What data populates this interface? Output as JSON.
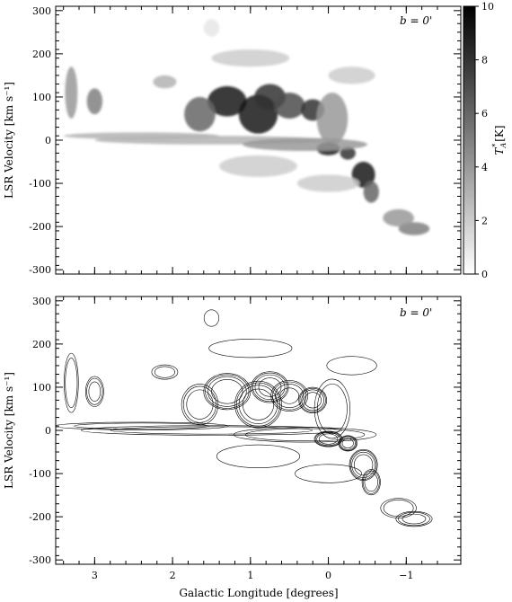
{
  "chart_data": [
    {
      "type": "heatmap",
      "panel": "top",
      "annotation": "b = 0'",
      "xlabel": "",
      "ylabel": "LSR Velocity [km s⁻¹]",
      "xlim": [
        3.5,
        -1.7
      ],
      "ylim": [
        -310,
        310
      ],
      "yticks": [
        300,
        200,
        100,
        0,
        -100,
        -200,
        -300
      ],
      "colorbar": {
        "label": "T*A [K]",
        "range": [
          0,
          10
        ],
        "ticks": [
          0,
          2,
          4,
          6,
          8,
          10
        ],
        "colormap": "white-to-black"
      },
      "features": [
        {
          "l": 1.3,
          "v": 90,
          "dl": 0.25,
          "dv": 35,
          "T": 9
        },
        {
          "l": 0.9,
          "v": 60,
          "dl": 0.25,
          "dv": 45,
          "T": 9
        },
        {
          "l": 0.75,
          "v": 100,
          "dl": 0.2,
          "dv": 30,
          "T": 8
        },
        {
          "l": 0.5,
          "v": 80,
          "dl": 0.2,
          "dv": 30,
          "T": 7
        },
        {
          "l": 0.2,
          "v": 70,
          "dl": 0.15,
          "dv": 25,
          "T": 8
        },
        {
          "l": 1.65,
          "v": 60,
          "dl": 0.2,
          "dv": 40,
          "T": 6
        },
        {
          "l": -0.05,
          "v": 50,
          "dl": 0.2,
          "dv": 60,
          "T": 4
        },
        {
          "l": 0.0,
          "v": -20,
          "dl": 0.15,
          "dv": 15,
          "T": 9
        },
        {
          "l": -0.25,
          "v": -30,
          "dl": 0.1,
          "dv": 15,
          "T": 8
        },
        {
          "l": -0.45,
          "v": -80,
          "dl": 0.15,
          "dv": 30,
          "T": 9
        },
        {
          "l": -0.55,
          "v": -120,
          "dl": 0.1,
          "dv": 25,
          "T": 6
        },
        {
          "l": -1.1,
          "v": -205,
          "dl": 0.2,
          "dv": 15,
          "T": 5
        },
        {
          "l": -0.9,
          "v": -180,
          "dl": 0.2,
          "dv": 20,
          "T": 4
        },
        {
          "l": 3.3,
          "v": 110,
          "dl": 0.08,
          "dv": 60,
          "T": 4
        },
        {
          "l": 3.0,
          "v": 90,
          "dl": 0.1,
          "dv": 30,
          "T": 5
        },
        {
          "l": 2.1,
          "v": 135,
          "dl": 0.15,
          "dv": 15,
          "T": 3
        },
        {
          "l": 1.0,
          "v": 190,
          "dl": 0.5,
          "dv": 20,
          "T": 2
        },
        {
          "l": -0.3,
          "v": 150,
          "dl": 0.3,
          "dv": 20,
          "T": 2
        },
        {
          "l": 1.5,
          "v": 260,
          "dl": 0.1,
          "dv": 20,
          "T": 1
        },
        {
          "l": 1.5,
          "v": 0,
          "dl": 1.5,
          "dv": 10,
          "T": 3
        },
        {
          "l": 0.3,
          "v": -10,
          "dl": 0.8,
          "dv": 15,
          "T": 4
        },
        {
          "l": 2.4,
          "v": 10,
          "dl": 1.0,
          "dv": 8,
          "T": 3
        },
        {
          "l": 0.9,
          "v": -60,
          "dl": 0.5,
          "dv": 25,
          "T": 2
        },
        {
          "l": 0.0,
          "v": -100,
          "dl": 0.4,
          "dv": 20,
          "T": 2
        }
      ]
    },
    {
      "type": "heatmap",
      "panel": "bottom",
      "style": "contour",
      "annotation": "b = 0'",
      "xlabel": "Galactic Longitude [degrees]",
      "ylabel": "LSR Velocity [km s⁻¹]",
      "xlim": [
        3.5,
        -1.7
      ],
      "ylim": [
        -310,
        310
      ],
      "xticks": [
        3,
        2,
        1,
        0,
        -1
      ],
      "yticks": [
        300,
        200,
        100,
        0,
        -100,
        -200,
        -300
      ],
      "contour_levels": [
        1,
        2.5,
        4.5,
        7
      ]
    }
  ]
}
